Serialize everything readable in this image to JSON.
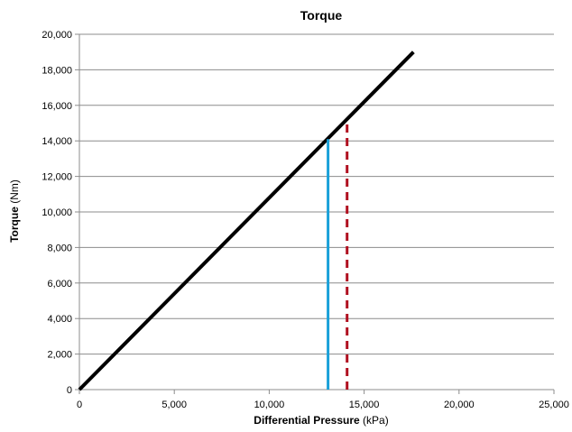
{
  "chart_data": {
    "type": "line",
    "title": "Torque",
    "xlabel": {
      "bold": "Differential Pressure",
      "unit": " (kPa)"
    },
    "ylabel": {
      "bold": "Torque",
      "unit": " (Nm)"
    },
    "xlim": [
      0,
      25000
    ],
    "ylim": [
      0,
      20000
    ],
    "x_ticks": [
      0,
      5000,
      10000,
      15000,
      20000,
      25000
    ],
    "y_ticks": [
      0,
      2000,
      4000,
      6000,
      8000,
      10000,
      12000,
      14000,
      16000,
      18000,
      20000
    ],
    "x_tick_labels": [
      "0",
      "5,000",
      "10,000",
      "15,000",
      "20,000",
      "25,000"
    ],
    "y_tick_labels": [
      "0",
      "2,000",
      "4,000",
      "6,000",
      "8,000",
      "10,000",
      "12,000",
      "14,000",
      "16,000",
      "18,000",
      "20,000"
    ],
    "grid": "horizontal",
    "series": [
      {
        "style": "solid",
        "color": "#000000",
        "x": [
          0,
          17600
        ],
        "y": [
          0,
          19000
        ]
      },
      {
        "style": "solid",
        "color": "#1aa0d8",
        "x": [
          13100,
          13100
        ],
        "y": [
          0,
          14100
        ]
      },
      {
        "style": "dashed",
        "color": "#b01020",
        "x": [
          14100,
          14100
        ],
        "y": [
          0,
          15200
        ]
      }
    ]
  }
}
